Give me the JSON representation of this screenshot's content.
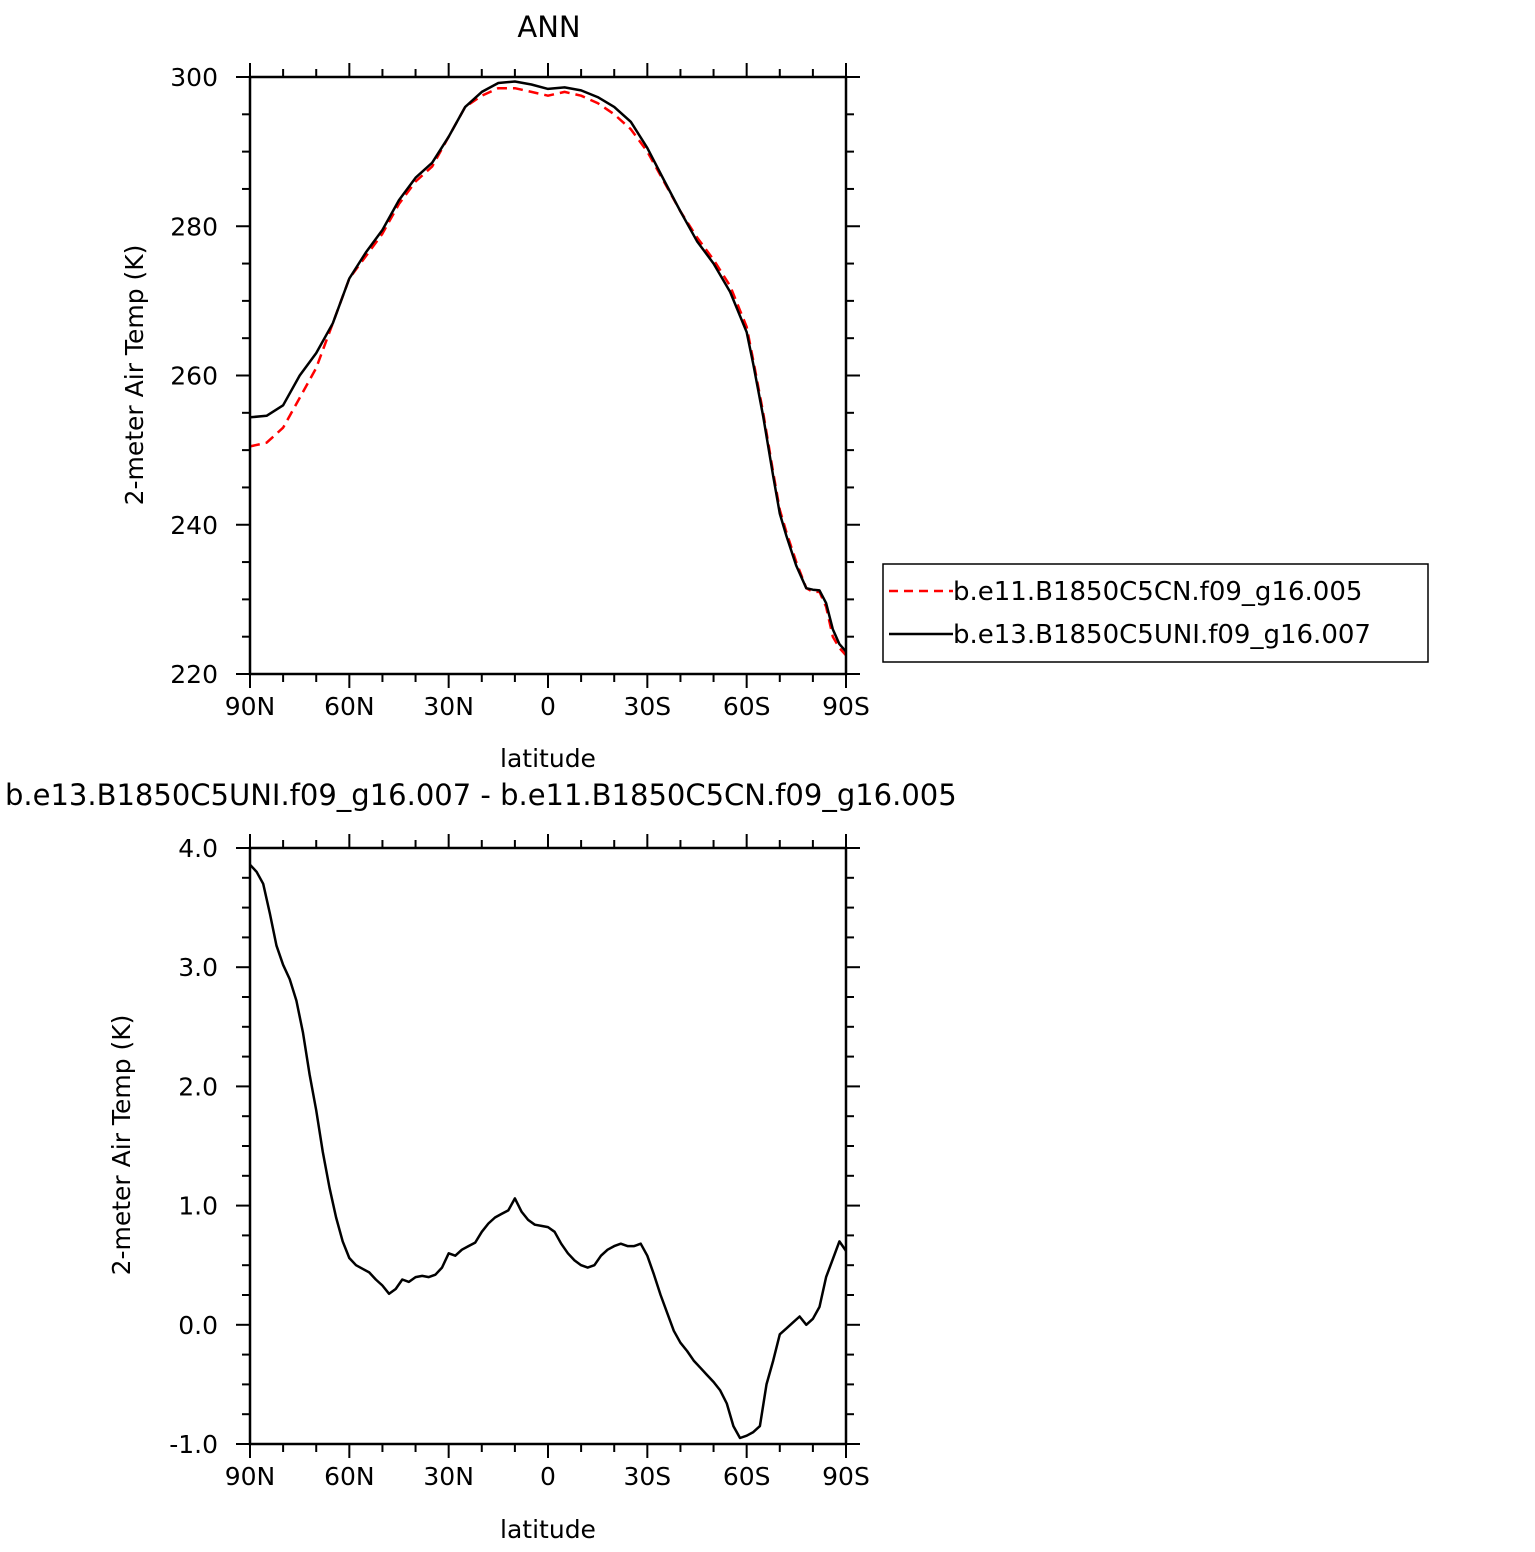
{
  "chart_data": [
    {
      "type": "line",
      "title": "ANN",
      "xlabel": "latitude",
      "ylabel": "2-meter Air Temp (K)",
      "xlim": [
        90,
        -90
      ],
      "ylim": [
        220,
        300
      ],
      "xticks": [
        90,
        60,
        30,
        0,
        -30,
        -60,
        -90
      ],
      "xtick_labels": [
        "90N",
        "60N",
        "30N",
        "0",
        "30S",
        "60S",
        "90S"
      ],
      "yticks": [
        220,
        240,
        260,
        280,
        300
      ],
      "ytick_labels": [
        "220",
        "240",
        "260",
        "280",
        "300"
      ],
      "grid": false,
      "legend": {
        "placement": "right-outside",
        "box": true
      },
      "series": [
        {
          "name": "b.e11.B1850C5CN.f09_g16.005",
          "color": "#ff0000",
          "dash": "dashed",
          "x": [
            90,
            85,
            80,
            75,
            70,
            65,
            60,
            55,
            50,
            45,
            40,
            35,
            30,
            25,
            20,
            15,
            10,
            5,
            0,
            -5,
            -10,
            -15,
            -20,
            -25,
            -30,
            -35,
            -40,
            -45,
            -50,
            -55,
            -60,
            -62,
            -65,
            -68,
            -70,
            -72,
            -75,
            -78,
            -80,
            -82,
            -84,
            -86,
            -88,
            -90
          ],
          "y": [
            250.5,
            251.0,
            253.0,
            257.0,
            261.0,
            267.0,
            273.0,
            276.0,
            279.0,
            283.0,
            286.0,
            288.0,
            292.0,
            296.0,
            297.5,
            298.5,
            298.5,
            298.0,
            297.5,
            298.0,
            297.5,
            296.5,
            295.0,
            293.0,
            290.0,
            286.0,
            282.0,
            278.5,
            275.5,
            272.0,
            266.5,
            262.0,
            255.0,
            247.0,
            242.0,
            239.0,
            235.0,
            231.5,
            231.0,
            231.0,
            229.0,
            225.0,
            223.5,
            222.5
          ]
        },
        {
          "name": "b.e13.B1850C5UNI.f09_g16.007",
          "color": "#000000",
          "dash": "solid",
          "x": [
            90,
            85,
            80,
            75,
            70,
            65,
            60,
            55,
            50,
            45,
            40,
            35,
            30,
            25,
            20,
            15,
            10,
            5,
            0,
            -5,
            -10,
            -15,
            -20,
            -25,
            -30,
            -35,
            -40,
            -45,
            -50,
            -55,
            -60,
            -62,
            -65,
            -68,
            -70,
            -72,
            -75,
            -78,
            -80,
            -82,
            -84,
            -86,
            -88,
            -90
          ],
          "y": [
            254.4,
            254.6,
            256.0,
            260.0,
            263.0,
            267.0,
            273.0,
            276.5,
            279.5,
            283.5,
            286.5,
            288.5,
            292.0,
            296.0,
            298.0,
            299.2,
            299.4,
            299.0,
            298.4,
            298.6,
            298.2,
            297.3,
            296.0,
            294.0,
            290.5,
            286.2,
            282.0,
            278.0,
            275.0,
            271.2,
            265.8,
            261.5,
            254.5,
            246.5,
            241.5,
            238.5,
            234.5,
            231.5,
            231.3,
            231.2,
            229.5,
            226.0,
            224.0,
            223.0
          ]
        }
      ]
    },
    {
      "type": "line",
      "title": "b.e13.B1850C5UNI.f09_g16.007 - b.e11.B1850C5CN.f09_g16.005",
      "xlabel": "latitude",
      "ylabel": "2-meter Air Temp (K)",
      "xlim": [
        90,
        -90
      ],
      "ylim": [
        -1.0,
        4.0
      ],
      "xticks": [
        90,
        60,
        30,
        0,
        -30,
        -60,
        -90
      ],
      "xtick_labels": [
        "90N",
        "60N",
        "30N",
        "0",
        "30S",
        "60S",
        "90S"
      ],
      "yticks": [
        -1.0,
        0.0,
        1.0,
        2.0,
        3.0,
        4.0
      ],
      "ytick_labels": [
        "-1.0",
        "0.0",
        "1.0",
        "2.0",
        "3.0",
        "4.0"
      ],
      "grid": false,
      "series": [
        {
          "color": "#000000",
          "dash": "solid",
          "x": [
            90,
            88,
            86,
            84,
            82,
            80,
            78,
            76,
            74,
            72,
            70,
            68,
            66,
            64,
            62,
            60,
            58,
            56,
            54,
            52,
            50,
            48,
            46,
            44,
            42,
            40,
            38,
            36,
            34,
            32,
            30,
            28,
            26,
            24,
            22,
            20,
            18,
            16,
            14,
            12,
            10,
            8,
            6,
            4,
            2,
            0,
            -2,
            -4,
            -6,
            -8,
            -10,
            -12,
            -14,
            -16,
            -18,
            -20,
            -22,
            -24,
            -26,
            -28,
            -30,
            -32,
            -34,
            -36,
            -38,
            -40,
            -42,
            -44,
            -46,
            -48,
            -50,
            -52,
            -54,
            -56,
            -58,
            -60,
            -62,
            -64,
            -66,
            -68,
            -70,
            -72,
            -74,
            -76,
            -78,
            -80,
            -82,
            -84,
            -86,
            -88,
            -90
          ],
          "y": [
            3.86,
            3.8,
            3.7,
            3.45,
            3.18,
            3.02,
            2.9,
            2.72,
            2.45,
            2.1,
            1.8,
            1.45,
            1.15,
            0.9,
            0.7,
            0.56,
            0.5,
            0.47,
            0.44,
            0.38,
            0.33,
            0.26,
            0.3,
            0.38,
            0.36,
            0.4,
            0.41,
            0.4,
            0.42,
            0.48,
            0.6,
            0.58,
            0.63,
            0.66,
            0.69,
            0.78,
            0.85,
            0.9,
            0.93,
            0.96,
            1.06,
            0.95,
            0.88,
            0.84,
            0.83,
            0.82,
            0.78,
            0.68,
            0.6,
            0.54,
            0.5,
            0.48,
            0.5,
            0.58,
            0.63,
            0.66,
            0.68,
            0.66,
            0.66,
            0.68,
            0.58,
            0.42,
            0.25,
            0.1,
            -0.05,
            -0.15,
            -0.22,
            -0.3,
            -0.36,
            -0.42,
            -0.48,
            -0.55,
            -0.66,
            -0.85,
            -0.95,
            -0.93,
            -0.9,
            -0.85,
            -0.5,
            -0.3,
            -0.08,
            -0.03,
            0.02,
            0.07,
            0.0,
            0.05,
            0.15,
            0.4,
            0.55,
            0.7,
            0.62
          ]
        }
      ]
    }
  ],
  "legend_entries": [
    {
      "label": "b.e11.B1850C5CN.f09_g16.005",
      "color": "#ff0000",
      "dash": "dashed"
    },
    {
      "label": "b.e13.B1850C5UNI.f09_g16.007",
      "color": "#000000",
      "dash": "solid"
    }
  ]
}
